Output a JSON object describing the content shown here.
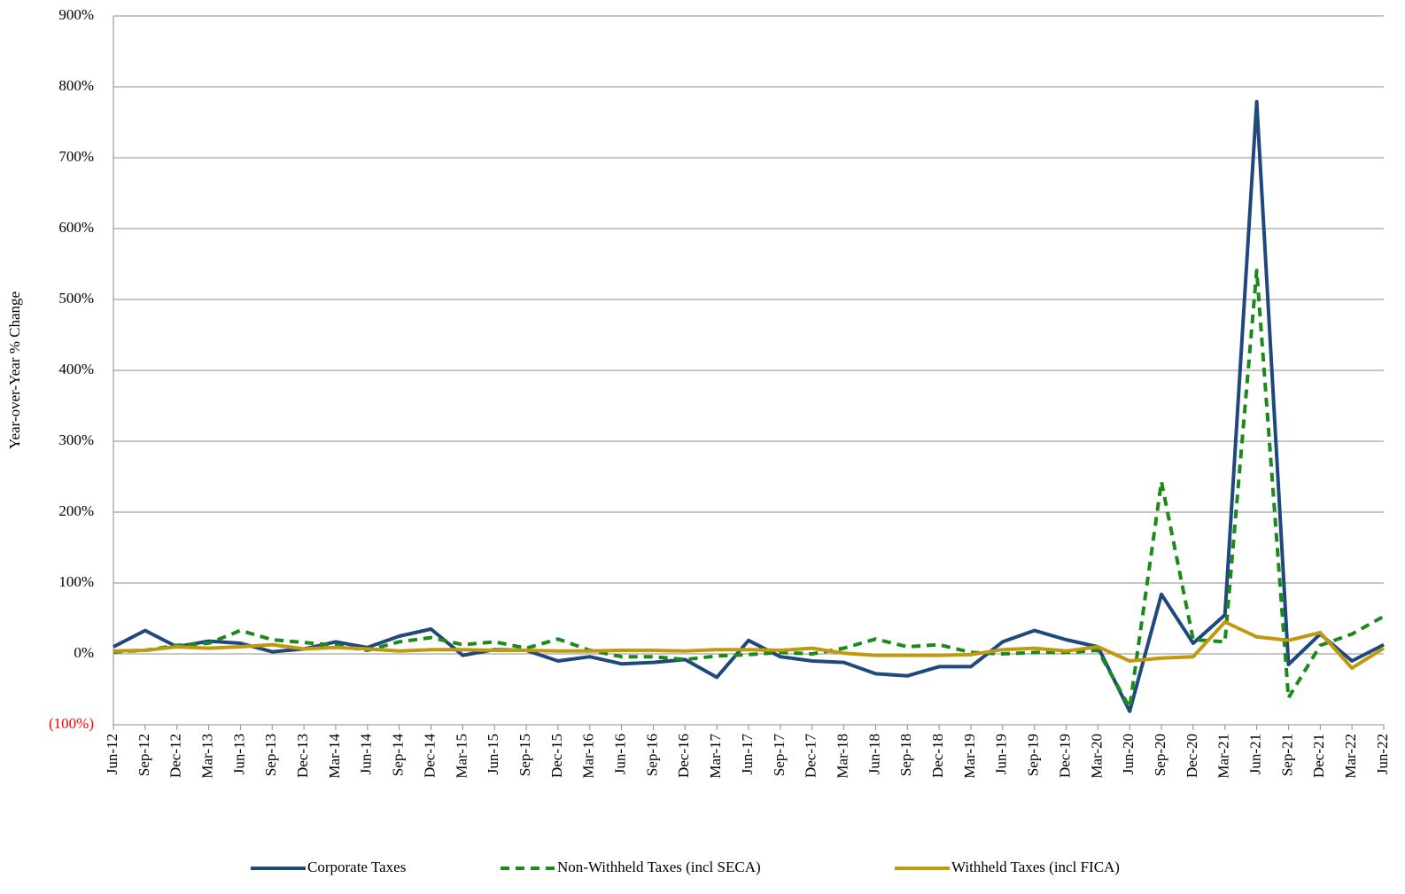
{
  "chart_data": {
    "type": "line",
    "y_axis_label": "Year-over-Year  % Change",
    "categories": [
      "Jun-12",
      "Sep-12",
      "Dec-12",
      "Mar-13",
      "Jun-13",
      "Sep-13",
      "Dec-13",
      "Mar-14",
      "Jun-14",
      "Sep-14",
      "Dec-14",
      "Mar-15",
      "Jun-15",
      "Sep-15",
      "Dec-15",
      "Mar-16",
      "Jun-16",
      "Sep-16",
      "Dec-16",
      "Mar-17",
      "Jun-17",
      "Sep-17",
      "Dec-17",
      "Mar-18",
      "Jun-18",
      "Sep-18",
      "Dec-18",
      "Mar-19",
      "Jun-19",
      "Sep-19",
      "Dec-19",
      "Mar-20",
      "Jun-20",
      "Sep-20",
      "Dec-20",
      "Mar-21",
      "Jun-21",
      "Sep-21",
      "Dec-21",
      "Mar-22",
      "Jun-22"
    ],
    "series": [
      {
        "name": "Corporate Taxes",
        "color": "#1f497d",
        "dash": "solid",
        "values": [
          10,
          33,
          10,
          18,
          15,
          3,
          7,
          17,
          9,
          25,
          35,
          -2,
          6,
          5,
          -10,
          -4,
          -14,
          -12,
          -8,
          -33,
          19,
          -4,
          -10,
          -12,
          -28,
          -31,
          -18,
          -18,
          17,
          33,
          20,
          10,
          -81,
          84,
          15,
          55,
          779,
          -15,
          28,
          -10,
          13
        ]
      },
      {
        "name": "Non-Withheld Taxes (incl SECA)",
        "color": "#1a8a1a",
        "dash": "dashed",
        "values": [
          3,
          5,
          12,
          15,
          33,
          20,
          16,
          12,
          5,
          17,
          23,
          13,
          17,
          8,
          21,
          5,
          -4,
          -4,
          -8,
          -3,
          -1,
          2,
          0,
          8,
          21,
          10,
          13,
          2,
          0,
          2,
          2,
          5,
          -76,
          243,
          20,
          17,
          541,
          -62,
          12,
          28,
          53
        ]
      },
      {
        "name": "Withheld Taxes (incl FICA)",
        "color": "#c0990f",
        "dash": "solid",
        "values": [
          4,
          5,
          10,
          8,
          10,
          13,
          7,
          9,
          7,
          4,
          6,
          6,
          5,
          5,
          4,
          4,
          5,
          5,
          4,
          6,
          6,
          5,
          8,
          1,
          -2,
          -2,
          -2,
          -1,
          6,
          8,
          4,
          10,
          -10,
          -6,
          -4,
          45,
          24,
          19,
          30,
          -20,
          8
        ]
      }
    ],
    "ylim": [
      -100,
      900
    ],
    "yticks": [
      {
        "value": -100,
        "label": "(100%)"
      },
      {
        "value": 0,
        "label": "0%"
      },
      {
        "value": 100,
        "label": "100%"
      },
      {
        "value": 200,
        "label": "200%"
      },
      {
        "value": 300,
        "label": "300%"
      },
      {
        "value": 400,
        "label": "400%"
      },
      {
        "value": 500,
        "label": "500%"
      },
      {
        "value": 600,
        "label": "600%"
      },
      {
        "value": 700,
        "label": "700%"
      },
      {
        "value": 800,
        "label": "800%"
      },
      {
        "value": 900,
        "label": "900%"
      }
    ],
    "negative_tick_color": "#ff0000",
    "grid": true,
    "legend": "bottom"
  }
}
